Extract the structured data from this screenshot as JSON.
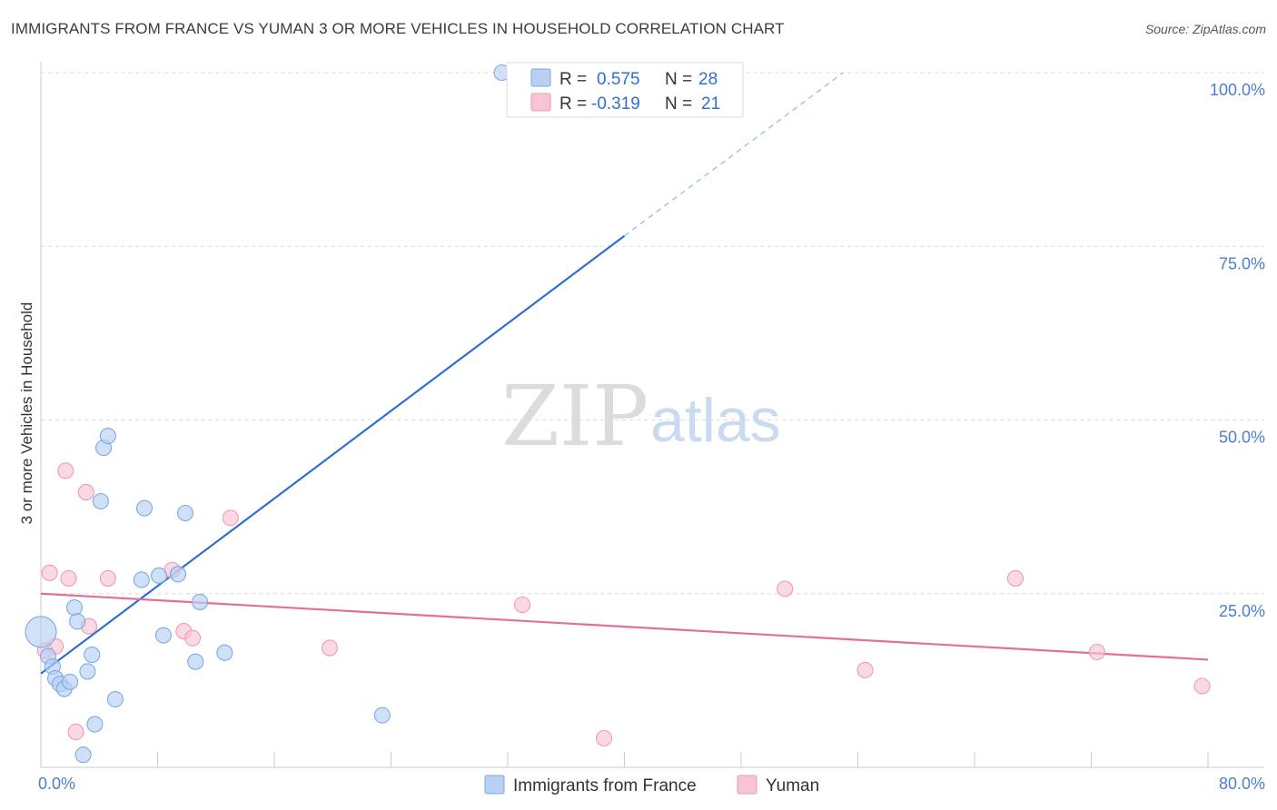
{
  "title": "IMMIGRANTS FROM FRANCE VS YUMAN 3 OR MORE VEHICLES IN HOUSEHOLD CORRELATION CHART",
  "source": "Source: ZipAtlas.com",
  "watermark": {
    "zip": "ZIP",
    "atlas": "atlas"
  },
  "colors": {
    "blue_fill": "#b7d0f2",
    "blue_stroke": "#7fa9e3",
    "blue_line": "#2f6fd1",
    "pink_fill": "#f7c4d3",
    "pink_stroke": "#ef9ab5",
    "pink_line": "#e0709a",
    "grid": "#dcdcdc",
    "tick_text": "#4a7fd0"
  },
  "legend": {
    "rows": [
      {
        "r_label": "R =",
        "r_value": "0.575",
        "n_label": "N =",
        "n_value": "28"
      },
      {
        "r_label": "R =",
        "r_value": "-0.319",
        "n_label": "N =",
        "n_value": "21"
      }
    ]
  },
  "chart_data": {
    "type": "scatter",
    "title": "IMMIGRANTS FROM FRANCE VS YUMAN 3 OR MORE VEHICLES IN HOUSEHOLD CORRELATION CHART",
    "xlabel": "",
    "ylabel": "3 or more Vehicles in Household",
    "xlim": [
      0,
      80
    ],
    "ylim": [
      0,
      100
    ],
    "x_tick_labels": [
      "0.0%",
      "80.0%"
    ],
    "y_tick_labels": [
      {
        "value": 100,
        "label": "100.0%"
      },
      {
        "value": 75,
        "label": "75.0%"
      },
      {
        "value": 50,
        "label": "50.0%"
      },
      {
        "value": 25,
        "label": "25.0%"
      }
    ],
    "legend_position": "bottom-center",
    "series": [
      {
        "name": "Immigrants from France",
        "r": 0.575,
        "n": 28,
        "trend": {
          "x0": 0,
          "y0": 13.5,
          "x1": 40,
          "y1": 76.5,
          "dash_x1": 55,
          "dash_y1": 100
        },
        "points": [
          {
            "x": 0.0,
            "y": 19.5,
            "size": "large"
          },
          {
            "x": 0.5,
            "y": 16.0
          },
          {
            "x": 0.8,
            "y": 14.5
          },
          {
            "x": 1.0,
            "y": 12.8
          },
          {
            "x": 1.3,
            "y": 12.0
          },
          {
            "x": 1.6,
            "y": 11.3
          },
          {
            "x": 2.0,
            "y": 12.3
          },
          {
            "x": 2.3,
            "y": 23.0
          },
          {
            "x": 2.5,
            "y": 21.0
          },
          {
            "x": 3.2,
            "y": 13.8
          },
          {
            "x": 3.5,
            "y": 16.2
          },
          {
            "x": 4.1,
            "y": 38.3
          },
          {
            "x": 4.3,
            "y": 46.0
          },
          {
            "x": 4.6,
            "y": 47.7
          },
          {
            "x": 5.1,
            "y": 9.8
          },
          {
            "x": 3.7,
            "y": 6.2
          },
          {
            "x": 2.9,
            "y": 1.8
          },
          {
            "x": 6.9,
            "y": 27.0
          },
          {
            "x": 7.1,
            "y": 37.3
          },
          {
            "x": 8.1,
            "y": 27.6
          },
          {
            "x": 8.4,
            "y": 19.0
          },
          {
            "x": 9.4,
            "y": 27.8
          },
          {
            "x": 9.9,
            "y": 36.6
          },
          {
            "x": 10.6,
            "y": 15.2
          },
          {
            "x": 10.9,
            "y": 23.8
          },
          {
            "x": 12.6,
            "y": 16.5
          },
          {
            "x": 23.4,
            "y": 7.5
          },
          {
            "x": 31.6,
            "y": 100.0
          }
        ]
      },
      {
        "name": "Yuman",
        "r": -0.319,
        "n": 21,
        "trend": {
          "x0": 0,
          "y0": 25.0,
          "x1": 80,
          "y1": 15.5
        },
        "points": [
          {
            "x": 0.3,
            "y": 16.8
          },
          {
            "x": 0.6,
            "y": 28.0
          },
          {
            "x": 1.0,
            "y": 17.4
          },
          {
            "x": 1.7,
            "y": 42.7
          },
          {
            "x": 1.9,
            "y": 27.2
          },
          {
            "x": 2.4,
            "y": 5.1
          },
          {
            "x": 3.1,
            "y": 39.6
          },
          {
            "x": 3.3,
            "y": 20.3
          },
          {
            "x": 4.6,
            "y": 27.2
          },
          {
            "x": 9.0,
            "y": 28.4
          },
          {
            "x": 9.8,
            "y": 19.6
          },
          {
            "x": 10.4,
            "y": 18.6
          },
          {
            "x": 13.0,
            "y": 35.9
          },
          {
            "x": 19.8,
            "y": 17.2
          },
          {
            "x": 33.0,
            "y": 23.4
          },
          {
            "x": 38.6,
            "y": 4.2
          },
          {
            "x": 51.0,
            "y": 25.7
          },
          {
            "x": 56.5,
            "y": 14.0
          },
          {
            "x": 66.8,
            "y": 27.2
          },
          {
            "x": 72.4,
            "y": 16.6
          },
          {
            "x": 79.6,
            "y": 11.7
          }
        ]
      }
    ]
  }
}
